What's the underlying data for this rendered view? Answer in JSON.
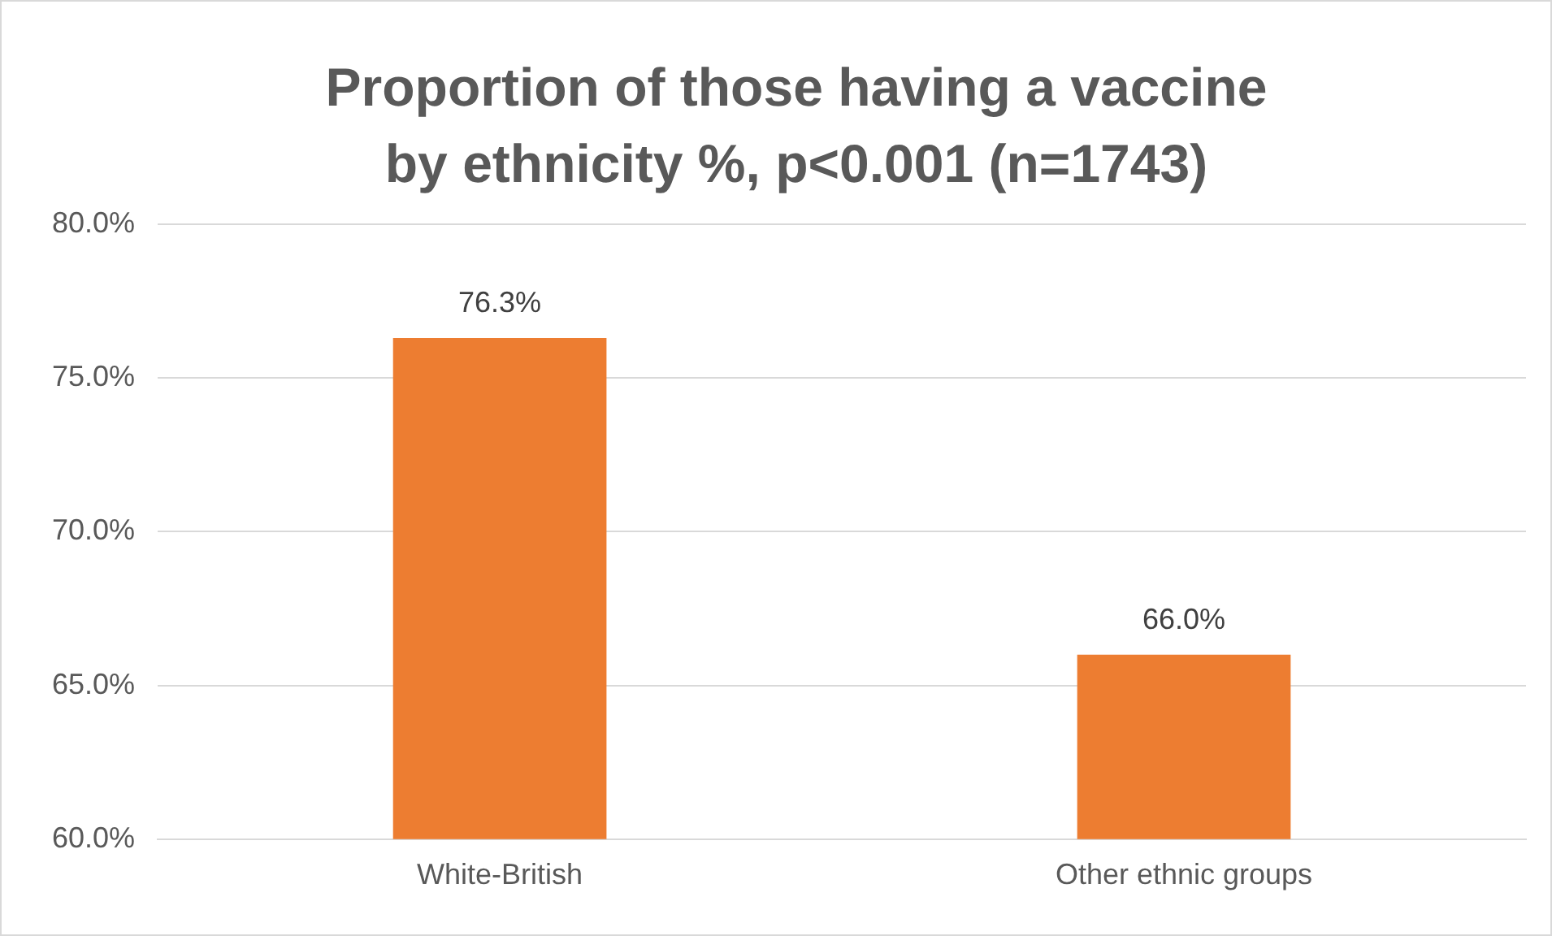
{
  "chart_data": {
    "type": "bar",
    "title": "Proportion of those having a vaccine by ethnicity %, p<0.001 (n=1743)",
    "categories": [
      "White-British",
      "Other ethnic groups"
    ],
    "values": [
      76.3,
      66.0
    ],
    "color": "#ed7d31",
    "value_labels": [
      "76.3%",
      "66.0%"
    ],
    "ylim": [
      60,
      80
    ],
    "yticks": [
      {
        "value": 60,
        "label": "60.0%"
      },
      {
        "value": 65,
        "label": "65.0%"
      },
      {
        "value": 70,
        "label": "70.0%"
      },
      {
        "value": 75,
        "label": "75.0%"
      },
      {
        "value": 80,
        "label": "80.0%"
      }
    ],
    "grid": "y",
    "legend": false
  }
}
